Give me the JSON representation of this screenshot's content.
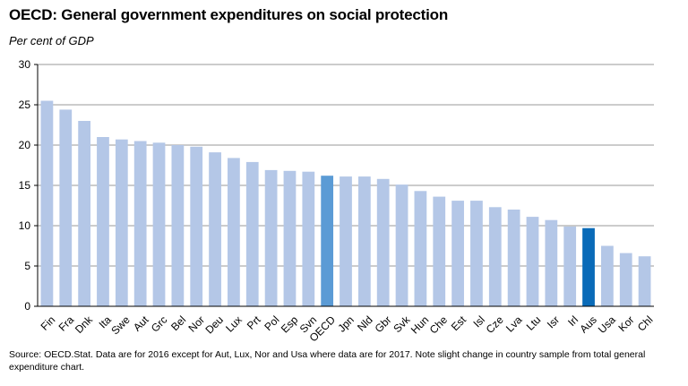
{
  "header": {
    "title": "OECD: General government expenditures on social protection",
    "subtitle": "Per cent of GDP"
  },
  "footer": {
    "source": "Source: OECD.Stat.  Data are for 2016 except for Aut, Lux, Nor and Usa where data are for 2017. Note slight change in country sample from total general expenditure chart."
  },
  "colors": {
    "default_bar": "#b4c7e7",
    "oecd_bar": "#5b9bd5",
    "aus_bar": "#0a6bb8",
    "gridline": "#9a9a9a",
    "axis": "#000000"
  },
  "chart_data": {
    "type": "bar",
    "title": "OECD: General government expenditures on social protection",
    "ylabel": "Per cent of GDP",
    "xlabel": "",
    "ylim": [
      0,
      30
    ],
    "yticks": [
      0,
      5,
      10,
      15,
      20,
      25,
      30
    ],
    "grid": true,
    "legend": "none",
    "categories": [
      "Fin",
      "Fra",
      "Dnk",
      "Ita",
      "Swe",
      "Aut",
      "Grc",
      "Bel",
      "Nor",
      "Deu",
      "Lux",
      "Prt",
      "Pol",
      "Esp",
      "Svn",
      "OECD",
      "Jpn",
      "Nld",
      "Gbr",
      "Svk",
      "Hun",
      "Che",
      "Est",
      "Isl",
      "Cze",
      "Lva",
      "Ltu",
      "Isr",
      "Irl",
      "Aus",
      "Usa",
      "Kor",
      "Chl"
    ],
    "values": [
      25.5,
      24.4,
      23.0,
      21.0,
      20.7,
      20.5,
      20.3,
      20.0,
      19.8,
      19.1,
      18.4,
      17.9,
      16.9,
      16.8,
      16.7,
      16.2,
      16.1,
      16.1,
      15.8,
      15.1,
      14.3,
      13.6,
      13.1,
      13.1,
      12.3,
      12.0,
      11.1,
      10.7,
      9.9,
      9.7,
      7.5,
      6.6,
      6.2
    ],
    "highlight": {
      "OECD": "oecd_bar",
      "Aus": "aus_bar"
    }
  }
}
